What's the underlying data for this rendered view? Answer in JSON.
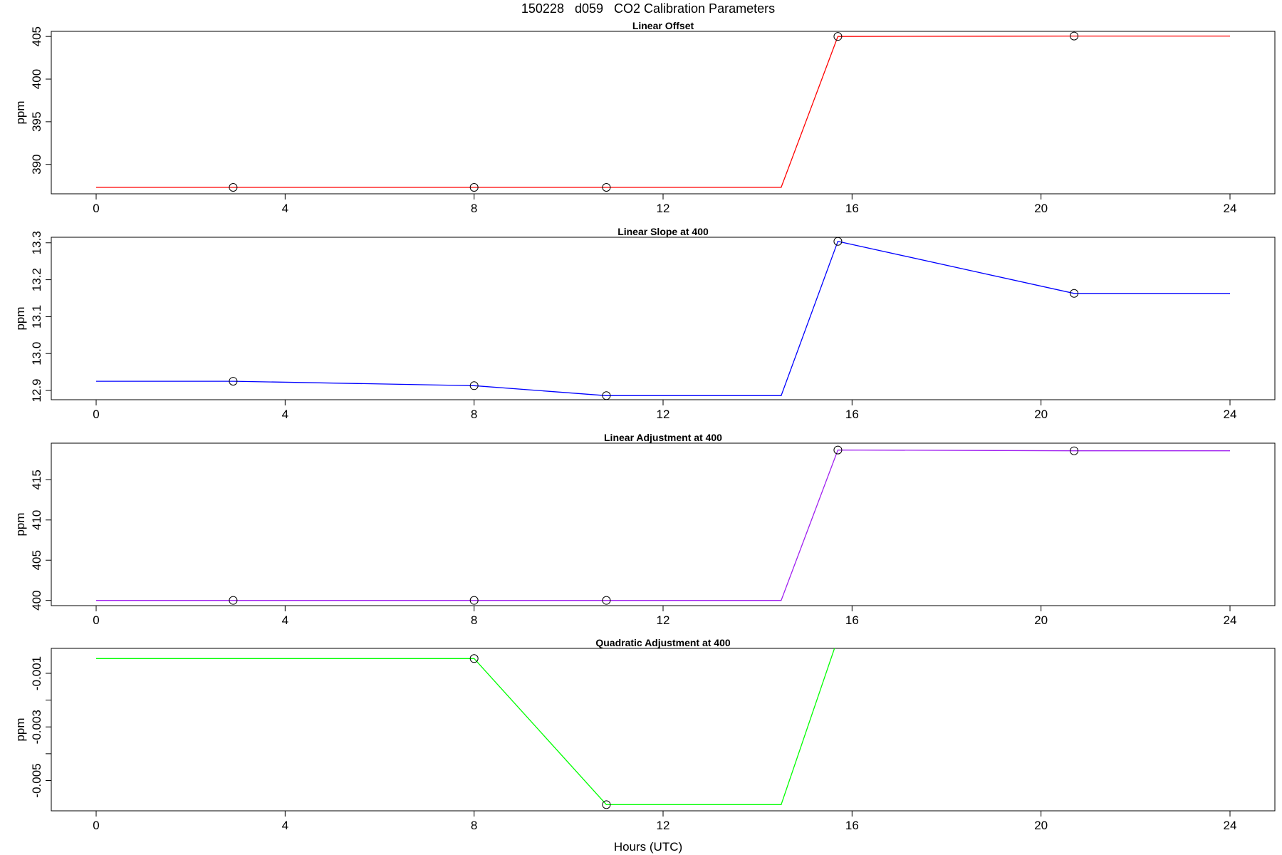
{
  "page": {
    "main_title": "150228   d059   CO2 Calibration Parameters",
    "x_axis_label": "Hours (UTC)"
  },
  "chart_data": [
    {
      "type": "line",
      "title": "Linear Offset",
      "xlabel": "",
      "ylabel": "ppm",
      "xlim": [
        -0.95,
        24.95
      ],
      "ylim": [
        386.55,
        405.6
      ],
      "x_ticks": [
        0,
        4,
        8,
        12,
        16,
        20,
        24
      ],
      "y_ticks": [
        390,
        395,
        400,
        405
      ],
      "line_color": "#ff0000",
      "line": {
        "x": [
          0,
          2.9,
          8.0,
          10.8,
          14.5,
          15.7,
          20.7,
          24
        ],
        "y": [
          387.3,
          387.3,
          387.3,
          387.3,
          387.3,
          405.0,
          405.05,
          405.05
        ]
      },
      "points": {
        "x": [
          2.9,
          8.0,
          10.8,
          15.7,
          20.7
        ],
        "y": [
          387.3,
          387.3,
          387.3,
          405.0,
          405.05
        ]
      }
    },
    {
      "type": "line",
      "title": "Linear Slope at 400",
      "xlabel": "",
      "ylabel": "ppm",
      "xlim": [
        -0.95,
        24.95
      ],
      "ylim": [
        12.875,
        13.315
      ],
      "x_ticks": [
        0,
        4,
        8,
        12,
        16,
        20,
        24
      ],
      "y_ticks": [
        12.9,
        13.0,
        13.1,
        13.2,
        13.3
      ],
      "line_color": "#0000ff",
      "line": {
        "x": [
          0,
          2.9,
          8.0,
          10.8,
          14.5,
          15.7,
          20.7,
          24
        ],
        "y": [
          12.925,
          12.925,
          12.913,
          12.886,
          12.886,
          13.304,
          13.163,
          13.163
        ]
      },
      "points": {
        "x": [
          2.9,
          8.0,
          10.8,
          15.7,
          20.7
        ],
        "y": [
          12.925,
          12.913,
          12.886,
          13.304,
          13.163
        ]
      }
    },
    {
      "type": "line",
      "title": "Linear Adjustment at 400",
      "xlabel": "",
      "ylabel": "ppm",
      "xlim": [
        -0.95,
        24.95
      ],
      "ylim": [
        399.35,
        419.55
      ],
      "x_ticks": [
        0,
        4,
        8,
        12,
        16,
        20,
        24
      ],
      "y_ticks": [
        400,
        405,
        410,
        415
      ],
      "line_color": "#a020f0",
      "line": {
        "x": [
          0,
          2.9,
          8.0,
          10.8,
          14.5,
          15.7,
          20.7,
          24
        ],
        "y": [
          400.0,
          400.0,
          400.0,
          400.0,
          400.0,
          418.7,
          418.6,
          418.6
        ]
      },
      "points": {
        "x": [
          2.9,
          8.0,
          10.8,
          15.7,
          20.7
        ],
        "y": [
          400.0,
          400.0,
          400.0,
          418.7,
          418.6
        ]
      }
    },
    {
      "type": "line",
      "title": "Quadratic Adjustment at 400",
      "xlabel": "",
      "ylabel": "ppm",
      "xlim": [
        -0.95,
        24.95
      ],
      "ylim": [
        -0.00613,
        -7e-05
      ],
      "x_ticks": [
        0,
        4,
        8,
        12,
        16,
        20,
        24
      ],
      "y_ticks": [
        -0.001,
        -0.002,
        -0.003,
        -0.004,
        -0.005
      ],
      "y_tick_labels": [
        "-0.001",
        "",
        "-0.003",
        "",
        "-0.005"
      ],
      "line_color": "#00ff00",
      "line": {
        "x": [
          0,
          8.0,
          10.8,
          14.5,
          15.7
        ],
        "y": [
          -0.00045,
          -0.00045,
          -0.0059,
          -0.0059,
          0.0003
        ]
      },
      "points": {
        "x": [
          8.0,
          10.8
        ],
        "y": [
          -0.00045,
          -0.0059
        ]
      }
    }
  ]
}
